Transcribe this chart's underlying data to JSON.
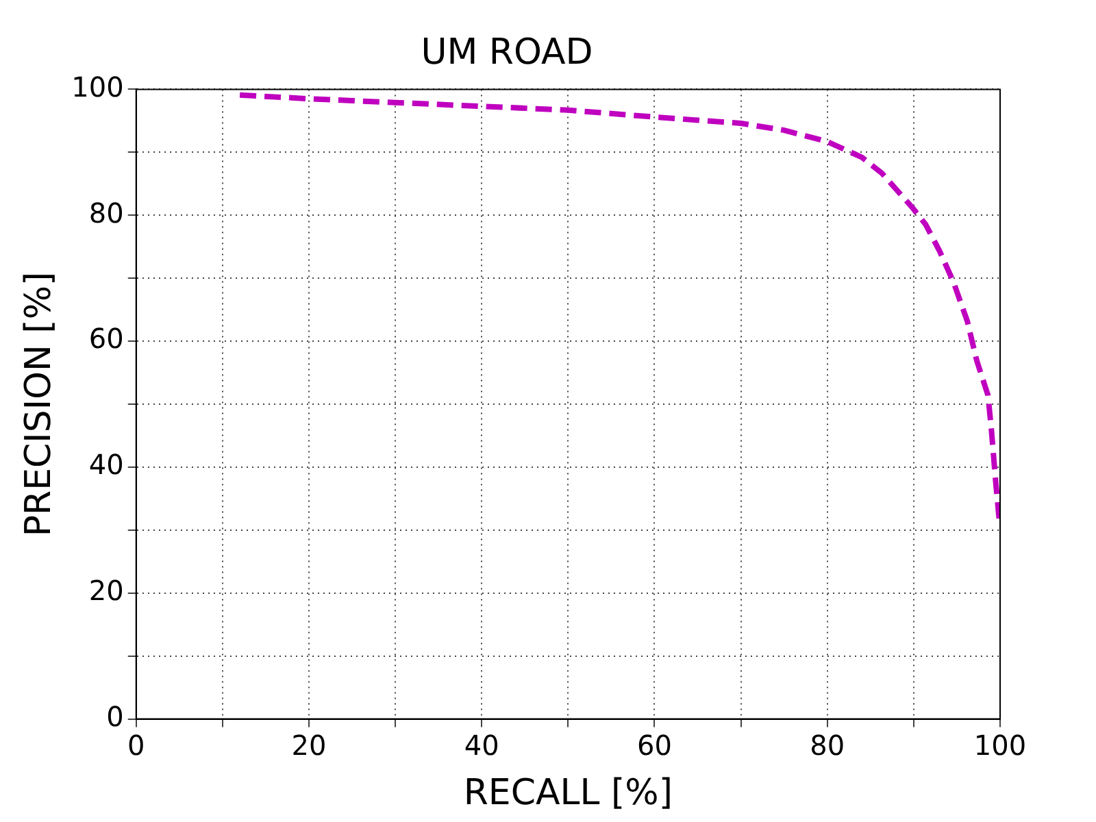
{
  "chart_data": {
    "type": "line",
    "title": "UM ROAD",
    "xlabel": "RECALL [%]",
    "ylabel": "PRECISION [%]",
    "xlim": [
      0,
      100
    ],
    "ylim": [
      0,
      100
    ],
    "xticks": [
      0,
      {
        "value": 10,
        "label": null
      },
      20,
      {
        "value": 30,
        "label": null
      },
      40,
      {
        "value": 50,
        "label": null
      },
      60,
      {
        "value": 70,
        "label": null
      },
      80,
      {
        "value": 90,
        "label": null
      },
      100
    ],
    "yticks": [
      0,
      {
        "value": 10,
        "label": null
      },
      20,
      {
        "value": 30,
        "label": null
      },
      40,
      {
        "value": 50,
        "label": null
      },
      60,
      {
        "value": 70,
        "label": null
      },
      80,
      {
        "value": 90,
        "label": null
      },
      100
    ],
    "grid": true,
    "legend": false,
    "marker": "none",
    "line_style": "dashed",
    "series": [
      {
        "color": "#bf00bf",
        "x": [
          12,
          20,
          30,
          40,
          50,
          60,
          70,
          75,
          80,
          84,
          86.3,
          89.8,
          91.4,
          93,
          94.6,
          96.2,
          97.3,
          98.6,
          99,
          99.5,
          99.9
        ],
        "values": [
          99.1,
          98.5,
          97.9,
          97.3,
          96.7,
          95.6,
          94.6,
          93.5,
          91.7,
          89.2,
          86.7,
          81.3,
          78.5,
          74.3,
          69.4,
          63.2,
          56.9,
          51.4,
          45.8,
          37.5,
          31.6
        ]
      }
    ]
  }
}
